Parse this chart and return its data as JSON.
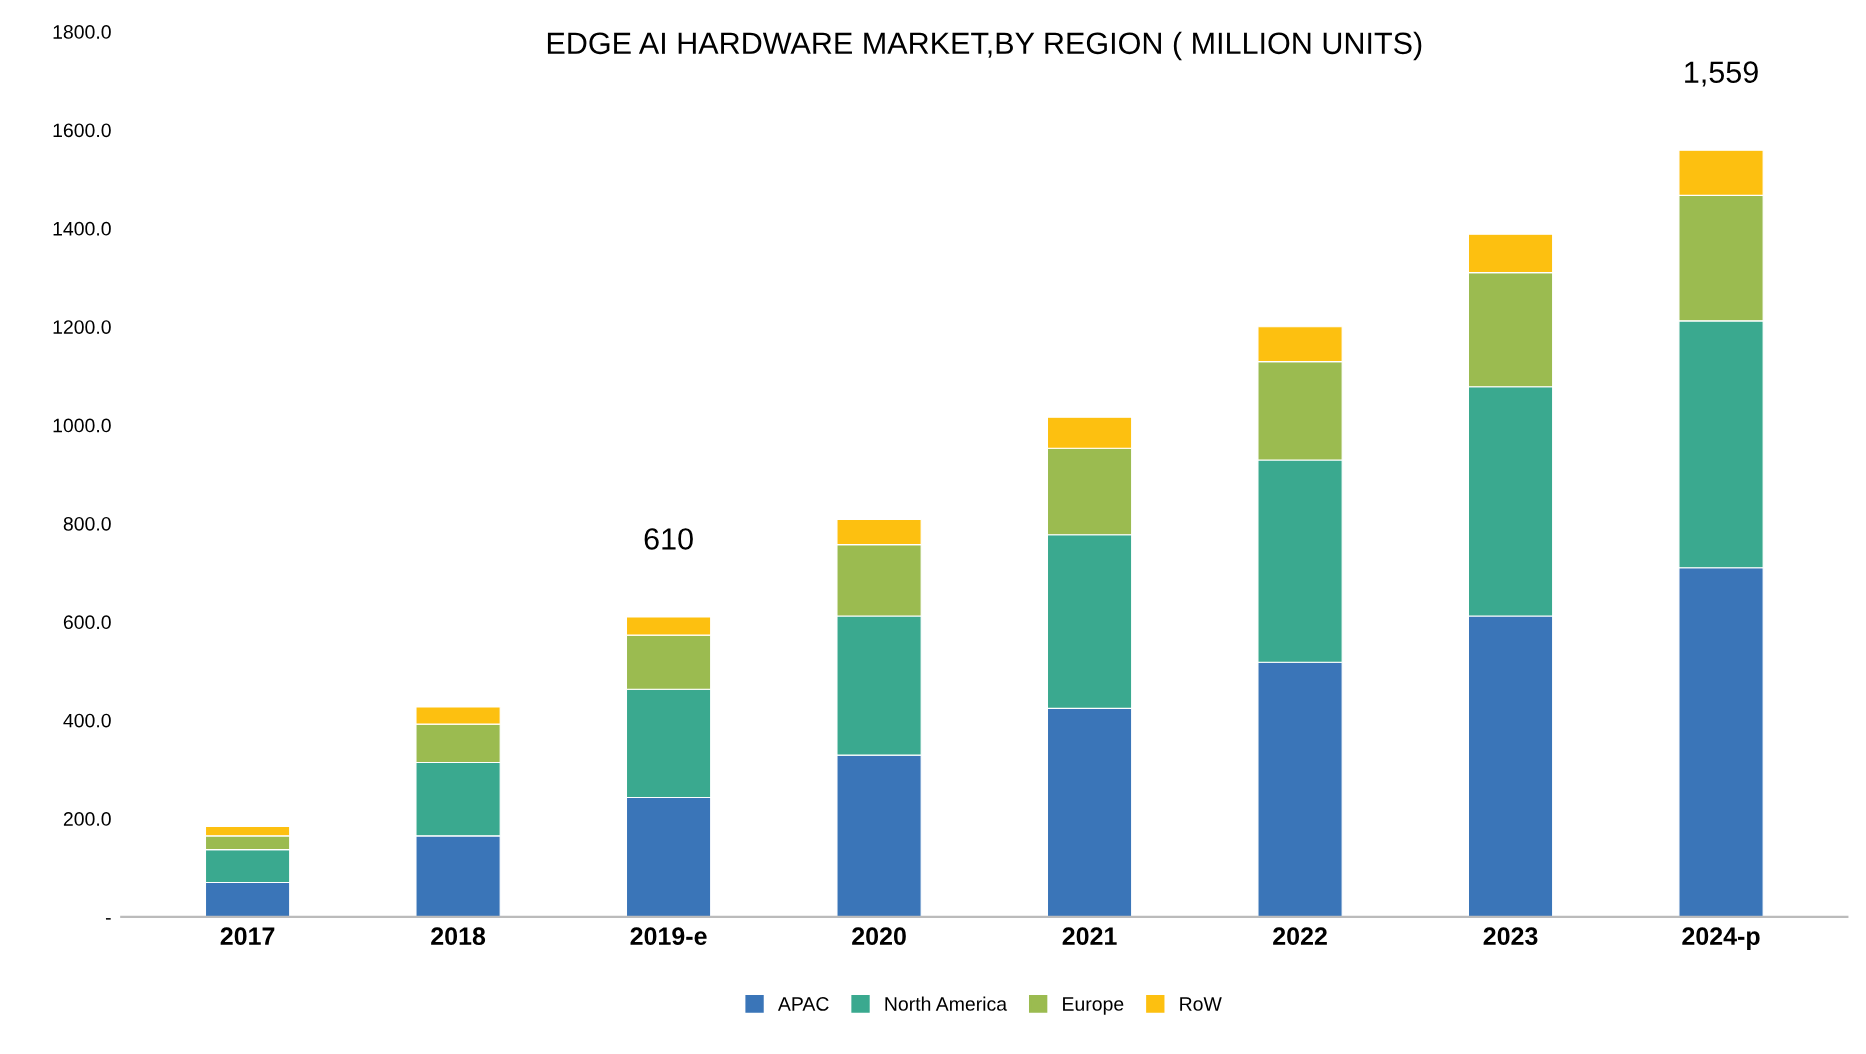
{
  "chart_data": {
    "type": "bar",
    "stacked": true,
    "title": "EDGE AI HARDWARE MARKET,BY REGION ( MILLION UNITS)",
    "categories": [
      "2017",
      "2018",
      "2019-e",
      "2020",
      "2021",
      "2022",
      "2023",
      "2024-p"
    ],
    "series": [
      {
        "name": "APAC",
        "color": "#3a75b8",
        "values": [
          70,
          165,
          243,
          329,
          424,
          518,
          612,
          710
        ]
      },
      {
        "name": "North America",
        "color": "#3aa98f",
        "values": [
          67,
          149,
          220,
          283,
          353,
          411,
          466,
          502
        ]
      },
      {
        "name": "Europe",
        "color": "#9bbb50",
        "values": [
          28,
          78,
          110,
          145,
          176,
          200,
          232,
          255
        ]
      },
      {
        "name": "RoW",
        "color": "#fdc010",
        "values": [
          19,
          35,
          37,
          51,
          63,
          71,
          78,
          92
        ]
      }
    ],
    "totals": [
      null,
      null,
      "610",
      null,
      null,
      null,
      null,
      "1,559"
    ],
    "ylim": [
      0,
      1800
    ],
    "yticks": [
      {
        "value": 0,
        "label": "-"
      },
      {
        "value": 200,
        "label": "200.0"
      },
      {
        "value": 400,
        "label": "400.0"
      },
      {
        "value": 600,
        "label": "600.0"
      },
      {
        "value": 800,
        "label": "800.0"
      },
      {
        "value": 1000,
        "label": "1000.0"
      },
      {
        "value": 1200,
        "label": "1200.0"
      },
      {
        "value": 1400,
        "label": "1400.0"
      },
      {
        "value": 1600,
        "label": "1600.0"
      },
      {
        "value": 1800,
        "label": "1800.0"
      }
    ],
    "grid": false,
    "legend": "bottom"
  }
}
